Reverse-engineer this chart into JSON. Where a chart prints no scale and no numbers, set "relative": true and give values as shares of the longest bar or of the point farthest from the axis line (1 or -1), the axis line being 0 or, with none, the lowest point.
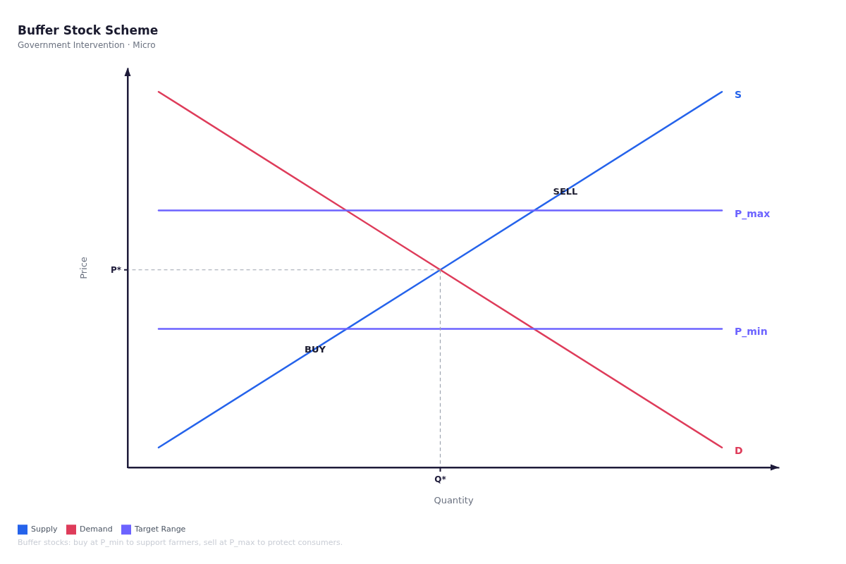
{
  "chart_data": {
    "type": "line",
    "title": "Buffer Stock Scheme",
    "subtitle": "Government Intervention · Micro",
    "xlabel": "Quantity",
    "ylabel": "Price",
    "relative": true,
    "categories": [
      null,
      null,
      null
    ],
    "series": [
      {
        "name": "Supply",
        "color": "#2563eb",
        "values": [
          0.053,
          0.526,
          1
        ]
      },
      {
        "name": "Demand",
        "color": "#de3c5a",
        "values": [
          1,
          0.526,
          0.053
        ]
      },
      {
        "name": "Target Range",
        "color": "#6c63ff",
        "values": [
          0.684,
          0.684,
          0.684
        ]
      },
      {
        "color": "#6c63ff",
        "values": [
          0.369,
          0.369,
          0.369
        ]
      }
    ],
    "ref_lines": [
      {
        "axis": "y",
        "value": 0.526,
        "label": "P*",
        "color": "#9ca3af",
        "line_style": "dashed"
      },
      {
        "axis": "x",
        "value": "Q*",
        "color": "#9ca3af",
        "line_style": "dashed"
      }
    ],
    "annotations": [
      "S",
      "D",
      "P_max",
      "P_min",
      "BUY",
      "SELL",
      "Buffer stocks: buy at P_min to support farmers, sell at P_max to protect consumers."
    ],
    "legend": "bottom left"
  }
}
